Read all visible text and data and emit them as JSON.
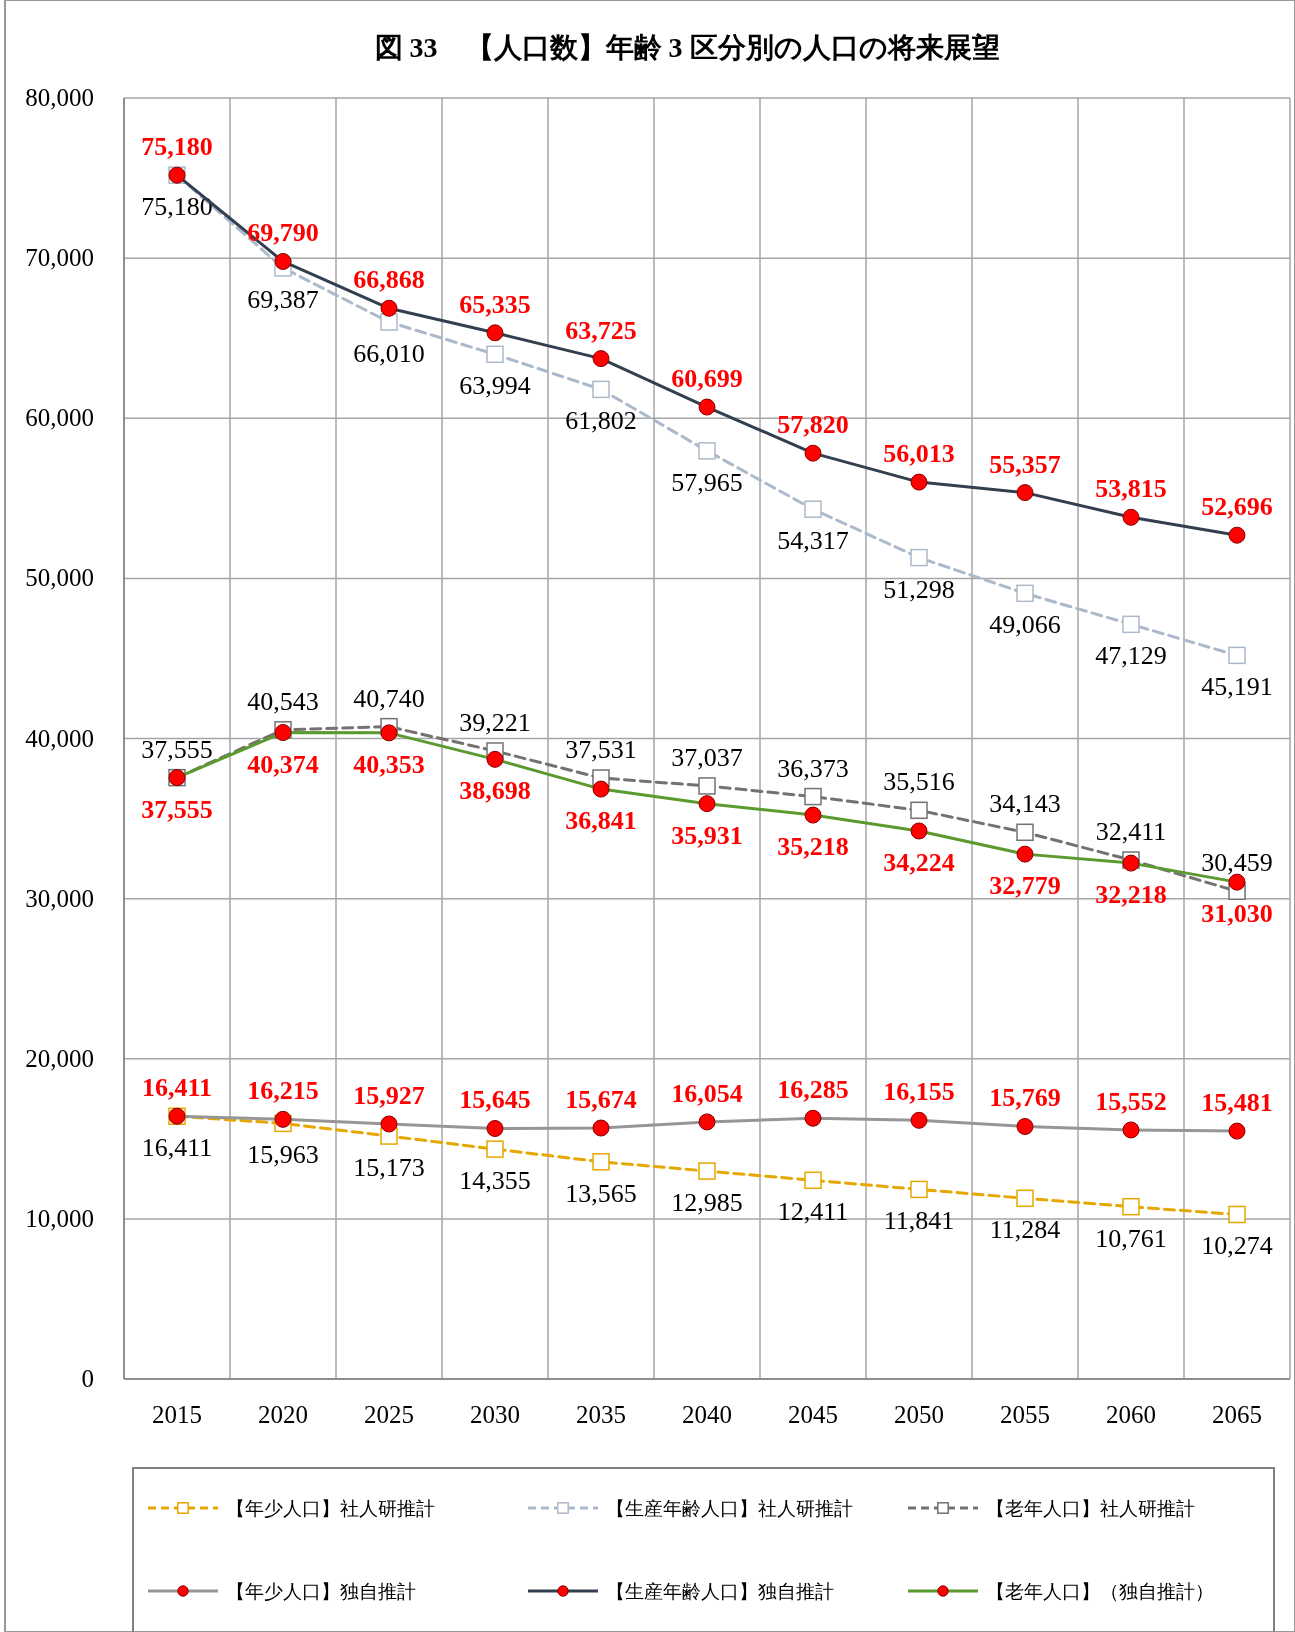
{
  "chart_data": {
    "type": "line",
    "title": "図 33　【人口数】年齢 3 区分別の人口の将来展望",
    "categories": [
      "2015",
      "2020",
      "2025",
      "2030",
      "2035",
      "2040",
      "2045",
      "2050",
      "2055",
      "2060",
      "2065"
    ],
    "ylim": [
      0,
      80000
    ],
    "yticks": [
      {
        "value": 0,
        "label": "0"
      },
      {
        "value": 10000,
        "label": "10,000"
      },
      {
        "value": 20000,
        "label": "20,000"
      },
      {
        "value": 30000,
        "label": "30,000"
      },
      {
        "value": 40000,
        "label": "40,000"
      },
      {
        "value": 50000,
        "label": "50,000"
      },
      {
        "value": 60000,
        "label": "60,000"
      },
      {
        "value": 70000,
        "label": "70,000"
      },
      {
        "value": 80000,
        "label": "80,000"
      }
    ],
    "grid": true,
    "legend": "bottom",
    "series": [
      {
        "name": "【年少人口】社人研推計",
        "color": "#e6a700",
        "marker": "square",
        "line_style": "dashed",
        "values": [
          16411,
          15963,
          15173,
          14355,
          13565,
          12985,
          12411,
          11841,
          11284,
          10761,
          10274
        ],
        "value_labels": [
          "16,411",
          "15,963",
          "15,173",
          "14,355",
          "13,565",
          "12,985",
          "12,411",
          "11,841",
          "11,284",
          "10,761",
          "10,274"
        ]
      },
      {
        "name": "【生産年齢人口】社人研推計",
        "color": "#acb9ca",
        "marker": "square",
        "line_style": "dashed",
        "values": [
          75180,
          69387,
          66010,
          63994,
          61802,
          57965,
          54317,
          51298,
          49066,
          47129,
          45191
        ],
        "value_labels": [
          "75,180",
          "69,387",
          "66,010",
          "63,994",
          "61,802",
          "57,965",
          "54,317",
          "51,298",
          "49,066",
          "47,129",
          "45,191"
        ]
      },
      {
        "name": "【老年人口】社人研推計",
        "color": "#767171",
        "marker": "square",
        "line_style": "dashed",
        "values": [
          37555,
          40543,
          40740,
          39221,
          37531,
          37037,
          36373,
          35516,
          34143,
          32411,
          30459
        ],
        "value_labels": [
          "37,555",
          "40,543",
          "40,740",
          "39,221",
          "37,531",
          "37,037",
          "36,373",
          "35,516",
          "34,143",
          "32,411",
          "30,459"
        ]
      },
      {
        "name": "【年少人口】独自推計",
        "color": "#969696",
        "marker": "circle",
        "line_style": "solid",
        "values": [
          16411,
          16215,
          15927,
          15645,
          15674,
          16054,
          16285,
          16155,
          15769,
          15552,
          15481
        ],
        "value_labels": [
          "16,411",
          "16,215",
          "15,927",
          "15,645",
          "15,674",
          "16,054",
          "16,285",
          "16,155",
          "15,769",
          "15,552",
          "15,481"
        ]
      },
      {
        "name": "【生産年齢人口】独自推計",
        "color": "#323f4f",
        "marker": "circle",
        "line_style": "solid",
        "values": [
          75180,
          69790,
          66868,
          65335,
          63725,
          60699,
          57820,
          56013,
          55357,
          53815,
          52696
        ],
        "value_labels": [
          "75,180",
          "69,790",
          "66,868",
          "65,335",
          "63,725",
          "60,699",
          "57,820",
          "56,013",
          "55,357",
          "53,815",
          "52,696"
        ]
      },
      {
        "name": "【老年人口】（独自推計）",
        "color": "#5b9a2f",
        "marker": "circle",
        "line_style": "solid",
        "values": [
          37555,
          40374,
          40353,
          38698,
          36841,
          35931,
          35218,
          34224,
          32779,
          32218,
          31030
        ],
        "value_labels": [
          "37,555",
          "40,374",
          "40,353",
          "38,698",
          "36,841",
          "35,931",
          "35,218",
          "34,224",
          "32,779",
          "32,218",
          "31,030"
        ]
      }
    ]
  }
}
